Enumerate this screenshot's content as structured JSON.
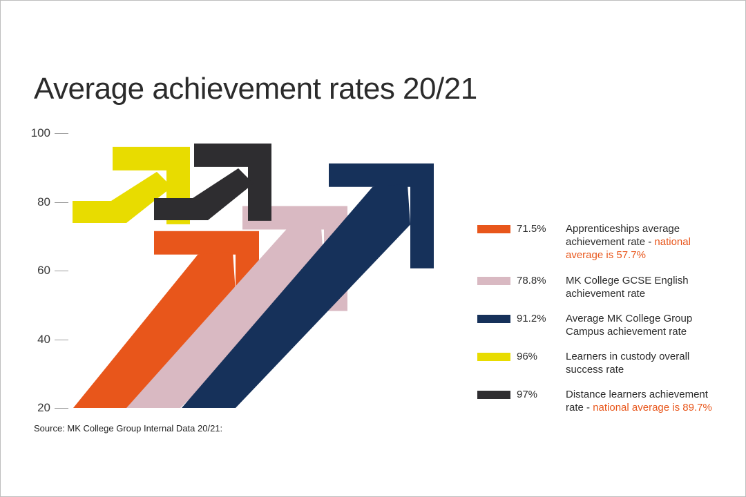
{
  "chart_data": {
    "type": "bar",
    "title": "Average achievement rates 20/21",
    "y_ticks": [
      100,
      80,
      60,
      40,
      20
    ],
    "ylim": [
      20,
      100
    ],
    "grid": false,
    "legend_placement": "right",
    "series": [
      {
        "value": 71.5,
        "value_label": "71.5%",
        "color": "#e8561b",
        "text": "Apprenticeships average achievement rate -",
        "note": "national average is 57.7%"
      },
      {
        "value": 78.8,
        "value_label": "78.8%",
        "color": "#d9b9c2",
        "text": "MK College GCSE English achievement rate",
        "note": ""
      },
      {
        "value": 91.2,
        "value_label": "91.2%",
        "color": "#16315a",
        "text": "Average MK College Group Campus achievement rate",
        "note": ""
      },
      {
        "value": 96,
        "value_label": "96%",
        "color": "#e8dc00",
        "text": "Learners in custody overall success rate",
        "note": ""
      },
      {
        "value": 97,
        "value_label": "97%",
        "color": "#2e2d30",
        "text": "Distance learners achievement rate -",
        "note": "national average is 89.7%"
      }
    ],
    "source": "Source: MK College Group Internal Data 20/21:"
  }
}
